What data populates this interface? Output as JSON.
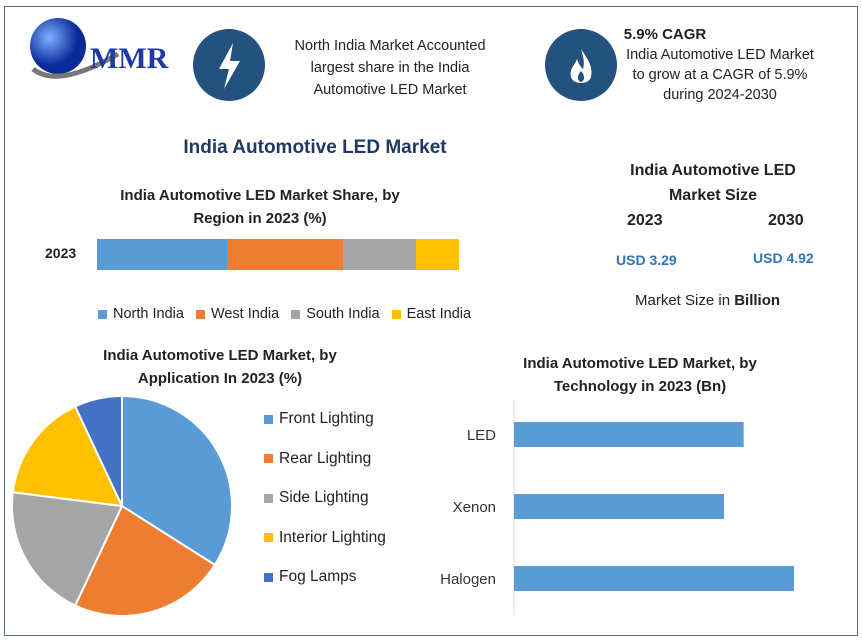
{
  "logo": {
    "text": "MMR"
  },
  "header": {
    "fact1": {
      "icon": "lightning-icon",
      "lines": [
        "North India Market Accounted",
        "largest share in the India",
        "Automotive LED Market"
      ]
    },
    "fact2": {
      "icon": "flame-icon",
      "title": "5.9% CAGR",
      "lines": [
        "India Automotive LED Market",
        "to grow at a CAGR of 5.9%",
        "during 2024-2030"
      ]
    }
  },
  "main_title": "India Automotive LED Market",
  "market_size": {
    "title_lines": [
      "India Automotive LED",
      "Market Size"
    ],
    "year1": "2023",
    "year2": "2030",
    "value1": "USD 3.29",
    "value2": "USD 4.92",
    "note_prefix": "Market Size in ",
    "note_bold": "Billion"
  },
  "colors": {
    "north": "#5b9bd5",
    "west": "#ed7d31",
    "south": "#a5a5a5",
    "east": "#ffc000",
    "fog": "#4472c4",
    "accent": "#1f3864"
  },
  "chart_data": [
    {
      "type": "bar",
      "orientation": "horizontal-stacked",
      "title": "India Automotive LED Market Share, by Region in 2023 (%)",
      "title_lines": [
        "India Automotive LED Market Share, by",
        "Region in 2023 (%)"
      ],
      "categories": [
        "2023"
      ],
      "series": [
        {
          "name": "North India",
          "values": [
            36
          ]
        },
        {
          "name": "West India",
          "values": [
            32
          ]
        },
        {
          "name": "South India",
          "values": [
            20
          ]
        },
        {
          "name": "East India",
          "values": [
            12
          ]
        }
      ],
      "legend": "bottom"
    },
    {
      "type": "pie",
      "title": "India Automotive LED Market, by Application In 2023 (%)",
      "title_lines": [
        "India Automotive LED Market, by",
        "Application In 2023 (%)"
      ],
      "labels": [
        "Front Lighting",
        "Rear Lighting",
        "Side Lighting",
        "Interior Lighting",
        "Fog Lamps"
      ],
      "values": [
        34,
        23,
        20,
        16,
        7
      ],
      "colors": [
        "#5b9bd5",
        "#ed7d31",
        "#a5a5a5",
        "#ffc000",
        "#4472c4"
      ],
      "legend": "right"
    },
    {
      "type": "bar",
      "orientation": "horizontal",
      "title": "India Automotive LED Market, by Technology in 2023 (Bn)",
      "title_lines": [
        "India Automotive LED Market, by",
        "Technology in 2023 (Bn)"
      ],
      "categories": [
        "LED",
        "Xenon",
        "Halogen"
      ],
      "values": [
        1.05,
        0.96,
        1.28
      ],
      "color": "#5b9bd5"
    }
  ]
}
